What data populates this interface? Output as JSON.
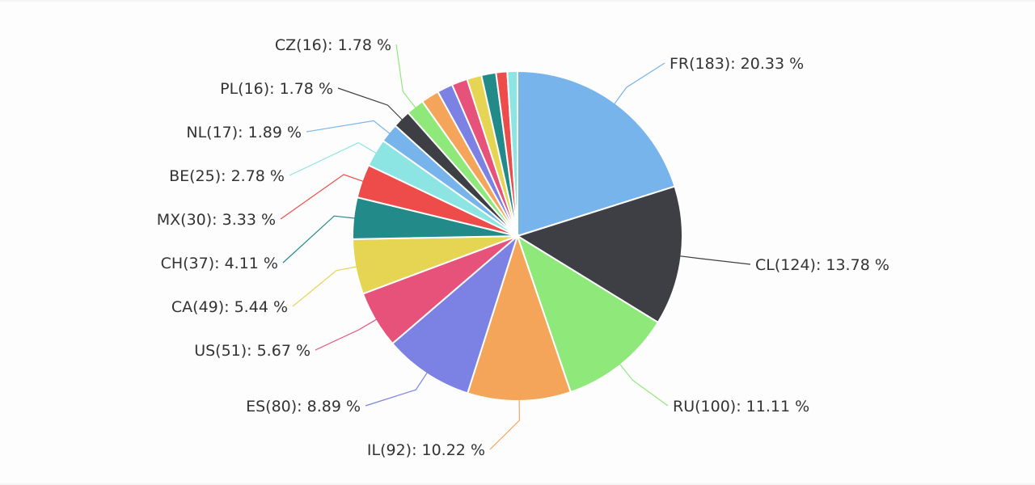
{
  "chart_data": {
    "type": "pie",
    "title": "",
    "legend": "none",
    "slices": [
      {
        "label": "FR(183): 20.33 %",
        "category": "FR",
        "value": 183,
        "percent": 20.33,
        "color": "#77b4ec"
      },
      {
        "label": "CL(124): 13.78 %",
        "category": "CL",
        "value": 124,
        "percent": 13.78,
        "color": "#3e3f44"
      },
      {
        "label": "RU(100): 11.11 %",
        "category": "RU",
        "value": 100,
        "percent": 11.11,
        "color": "#8fe97a"
      },
      {
        "label": "IL(92): 10.22 %",
        "category": "IL",
        "value": 92,
        "percent": 10.22,
        "color": "#f5a55a"
      },
      {
        "label": "ES(80): 8.89 %",
        "category": "ES",
        "value": 80,
        "percent": 8.89,
        "color": "#7b82e3"
      },
      {
        "label": "US(51): 5.67 %",
        "category": "US",
        "value": 51,
        "percent": 5.67,
        "color": "#e7527a"
      },
      {
        "label": "CA(49): 5.44 %",
        "category": "CA",
        "value": 49,
        "percent": 5.44,
        "color": "#e6d453"
      },
      {
        "label": "CH(37): 4.11 %",
        "category": "CH",
        "value": 37,
        "percent": 4.11,
        "color": "#228b89"
      },
      {
        "label": "MX(30): 3.33 %",
        "category": "MX",
        "value": 30,
        "percent": 3.33,
        "color": "#ee4c4b"
      },
      {
        "label": "BE(25): 2.78 %",
        "category": "BE",
        "value": 25,
        "percent": 2.78,
        "color": "#8de5e3"
      },
      {
        "label": "NL(17): 1.89 %",
        "category": "NL",
        "value": 17,
        "percent": 1.89,
        "color": "#77b4ec"
      },
      {
        "label": "PL(16): 1.78 %",
        "category": "PL",
        "value": 16,
        "percent": 1.78,
        "color": "#3e3f44"
      },
      {
        "label": "CZ(16): 1.78 %",
        "category": "CZ",
        "value": 16,
        "percent": 1.78,
        "color": "#8fe97a"
      },
      {
        "label": "",
        "value": 16,
        "percent": 1.78,
        "color": "#f5a55a"
      },
      {
        "label": "",
        "value": 14,
        "percent": 1.56,
        "color": "#7b82e3"
      },
      {
        "label": "",
        "value": 14,
        "percent": 1.56,
        "color": "#e7527a"
      },
      {
        "label": "",
        "value": 13,
        "percent": 1.44,
        "color": "#e6d453"
      },
      {
        "label": "",
        "value": 13,
        "percent": 1.44,
        "color": "#228b89"
      },
      {
        "label": "",
        "value": 10,
        "percent": 1.11,
        "color": "#ee4c4b"
      },
      {
        "label": "",
        "value": 9,
        "percent": 1.0,
        "color": "#8de5e3"
      }
    ]
  }
}
